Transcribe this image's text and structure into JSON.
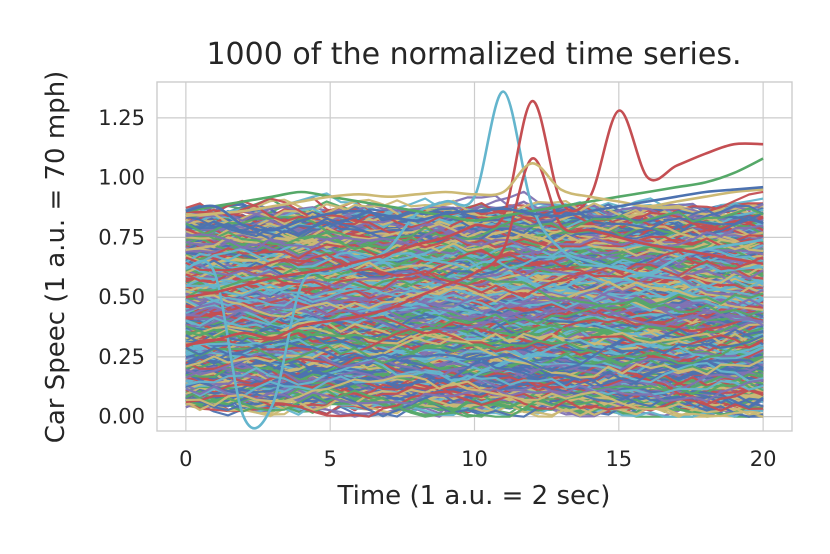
{
  "chart_data": {
    "type": "line",
    "title": "1000 of the normalized time series.",
    "xlabel": "Time (1 a.u. = 2 sec)",
    "ylabel": "Car Speec (1 a.u. = 70 mph)",
    "xlim": [
      -1,
      21
    ],
    "ylim": [
      -0.06,
      1.4
    ],
    "x_ticks": [
      0,
      5,
      10,
      15,
      20
    ],
    "x_tick_labels": [
      "0",
      "5",
      "10",
      "15",
      "20"
    ],
    "y_ticks": [
      0.0,
      0.25,
      0.5,
      0.75,
      1.0,
      1.25
    ],
    "y_tick_labels": [
      "0.00",
      "0.25",
      "0.50",
      "0.75",
      "1.00",
      "1.25"
    ],
    "grid": true,
    "n_series": 1000,
    "x": [
      0,
      1,
      2,
      3,
      4,
      5,
      6,
      7,
      8,
      9,
      10,
      11,
      12,
      13,
      14,
      15,
      16,
      17,
      18,
      19,
      20
    ],
    "palette": [
      "#4c72b0",
      "#55a868",
      "#c44e52",
      "#8172b2",
      "#ccb974",
      "#64b5cd"
    ],
    "series": [
      {
        "color": "#64b5cd",
        "values": [
          0.62,
          0.6,
          0.0,
          0.05,
          0.55,
          0.6,
          0.64,
          0.7,
          0.85,
          0.9,
          0.92,
          1.36,
          0.88,
          0.7,
          0.65,
          0.62,
          0.6,
          0.66,
          0.7,
          0.72,
          0.74
        ]
      },
      {
        "color": "#c44e52",
        "values": [
          0.5,
          0.52,
          0.55,
          0.58,
          0.6,
          0.62,
          0.65,
          0.68,
          0.72,
          0.75,
          0.8,
          0.84,
          1.32,
          0.9,
          0.92,
          1.28,
          1.0,
          1.05,
          1.1,
          1.14,
          1.14
        ]
      },
      {
        "color": "#c44e52",
        "values": [
          0.3,
          0.32,
          0.35,
          0.33,
          0.38,
          0.4,
          0.42,
          0.45,
          0.5,
          0.55,
          0.6,
          0.7,
          1.08,
          0.8,
          0.78,
          0.75,
          0.72,
          0.7,
          0.68,
          0.66,
          0.64
        ]
      },
      {
        "color": "#55a868",
        "values": [
          0.86,
          0.88,
          0.9,
          0.92,
          0.94,
          0.92,
          0.9,
          0.88,
          0.86,
          0.84,
          0.82,
          0.84,
          0.86,
          0.88,
          0.9,
          0.92,
          0.94,
          0.96,
          0.98,
          1.02,
          1.08
        ]
      },
      {
        "color": "#ccb974",
        "values": [
          0.84,
          0.85,
          0.86,
          0.88,
          0.9,
          0.92,
          0.93,
          0.92,
          0.93,
          0.94,
          0.93,
          0.94,
          1.06,
          0.95,
          0.92,
          0.9,
          0.88,
          0.9,
          0.92,
          0.94,
          0.95
        ]
      },
      {
        "color": "#4c72b0",
        "values": [
          0.86,
          0.88,
          0.8,
          0.78,
          0.82,
          0.85,
          0.86,
          0.84,
          0.82,
          0.85,
          0.86,
          0.87,
          0.85,
          0.84,
          0.86,
          0.88,
          0.9,
          0.92,
          0.94,
          0.95,
          0.96
        ]
      }
    ]
  }
}
